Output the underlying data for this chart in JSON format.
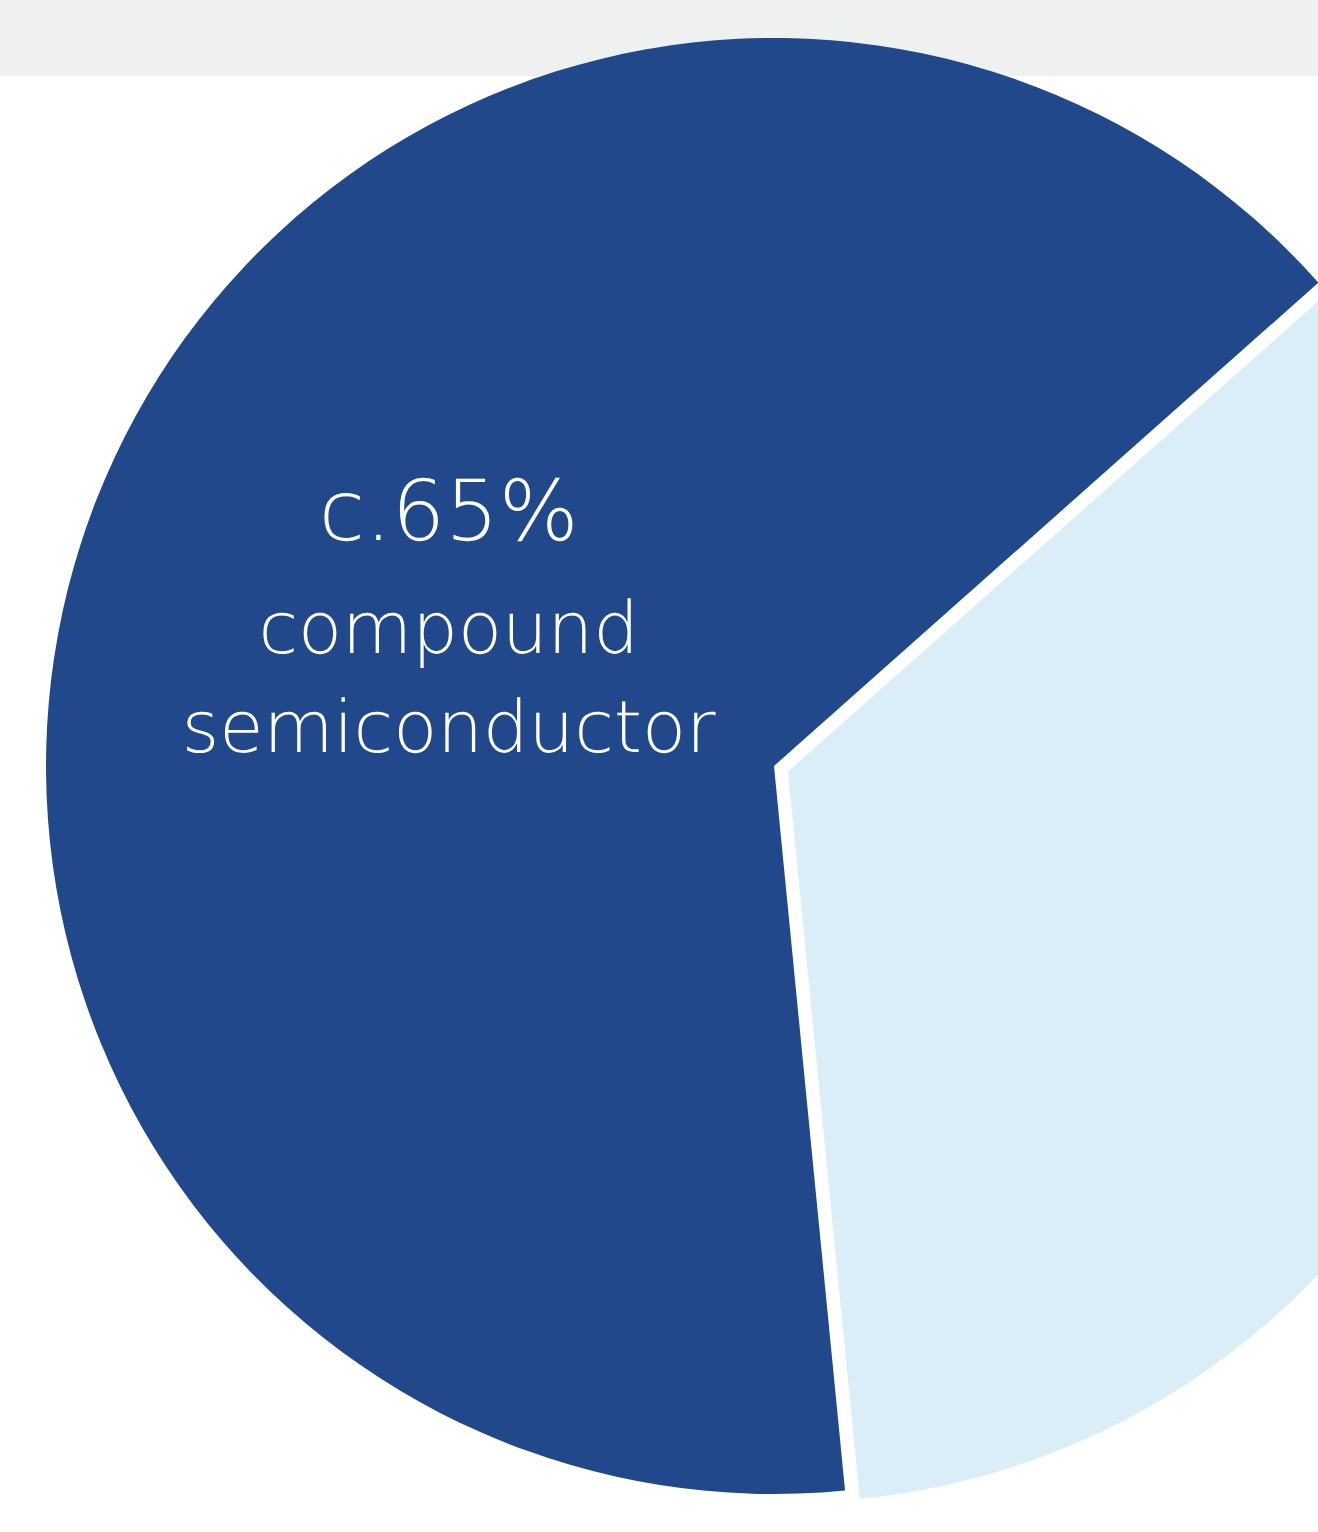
{
  "chart_data": {
    "type": "pie",
    "categories": [
      "compound semiconductor",
      null
    ],
    "values": [
      65,
      35
    ],
    "colors": [
      "#22488c",
      "#daeef8"
    ],
    "value_labels": [
      "c.65%",
      null
    ],
    "legend": false
  }
}
